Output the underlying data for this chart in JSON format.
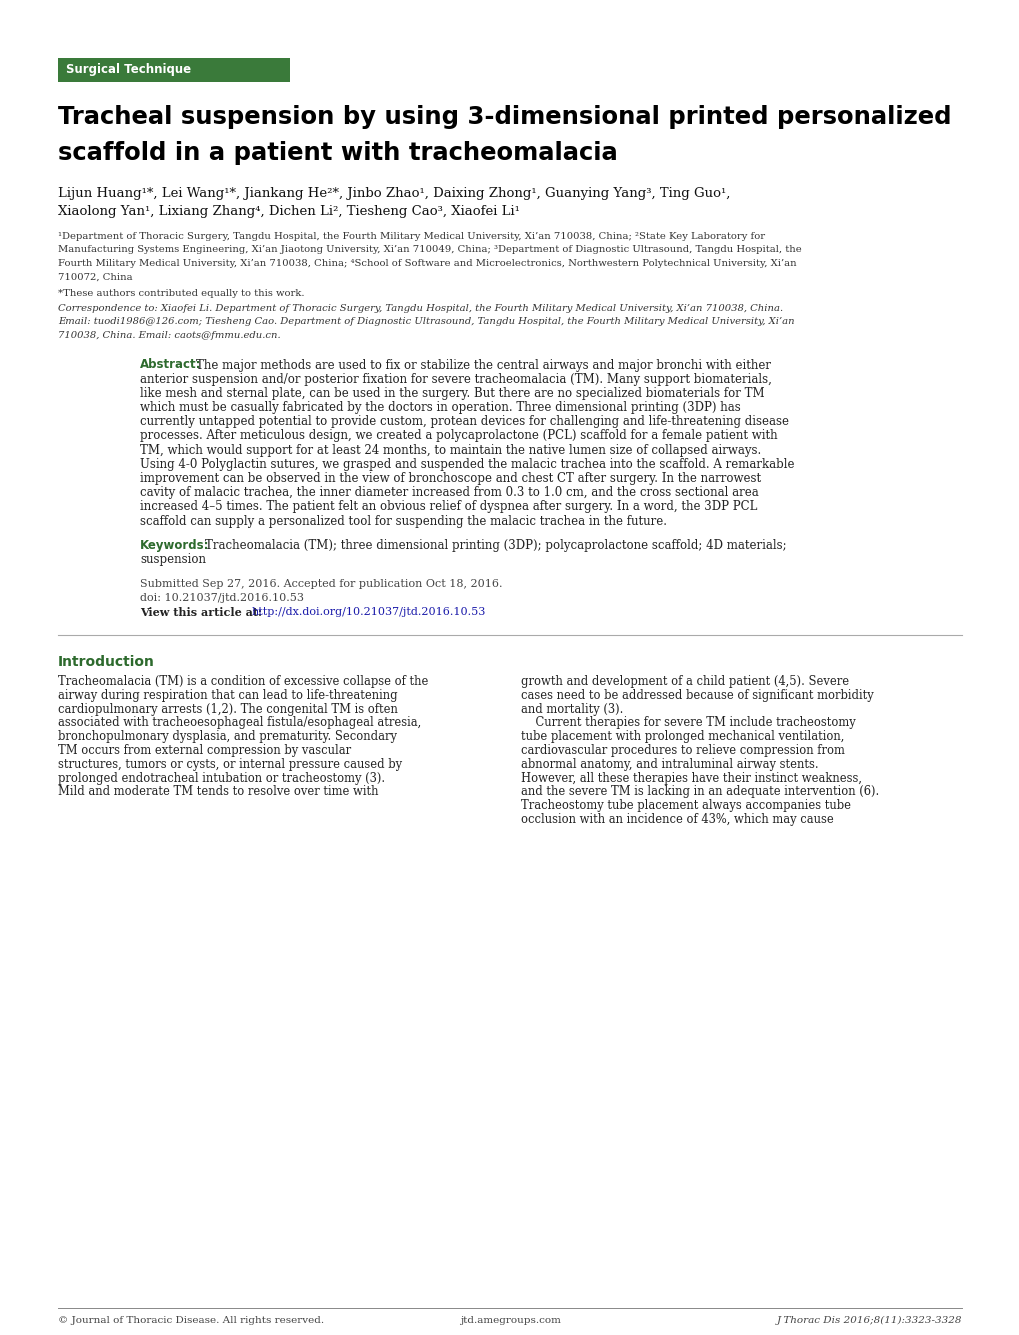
{
  "bg_color": "#ffffff",
  "green_color": "#2d6a2d",
  "tag_text": "Surgical Technique",
  "tag_bg": "#3a7a3a",
  "tag_text_color": "#ffffff",
  "title_line1": "Tracheal suspension by using 3-dimensional printed personalized",
  "title_line2": "scaffold in a patient with tracheomalacia",
  "authors_line1": "Lijun Huang¹*, Lei Wang¹*, Jiankang He²*, Jinbo Zhao¹, Daixing Zhong¹, Guanying Yang³, Ting Guo¹,",
  "authors_line2": "Xiaolong Yan¹, Lixiang Zhang⁴, Dichen Li², Tiesheng Cao³, Xiaofei Li¹",
  "affil_lines": [
    "¹Department of Thoracic Surgery, Tangdu Hospital, the Fourth Military Medical University, Xi’an 710038, China; ²State Key Laboratory for",
    "Manufacturing Systems Engineering, Xi’an Jiaotong University, Xi’an 710049, China; ³Department of Diagnostic Ultrasound, Tangdu Hospital, the",
    "Fourth Military Medical University, Xi’an 710038, China; ⁴School of Software and Microelectronics, Northwestern Polytechnical University, Xi’an",
    "710072, China"
  ],
  "equal_contrib": "*These authors contributed equally to this work.",
  "corr_lines": [
    "Correspondence to: Xiaofei Li. Department of Thoracic Surgery, Tangdu Hospital, the Fourth Military Medical University, Xi’an 710038, China.",
    "Email: tuodi1986@126.com; Tiesheng Cao. Department of Diagnostic Ultrasound, Tangdu Hospital, the Fourth Military Medical University, Xi’an",
    "710038, China. Email: caots@fmmu.edu.cn."
  ],
  "abstract_label": "Abstract:",
  "abstract_lines": [
    "The major methods are used to fix or stabilize the central airways and major bronchi with either",
    "anterior suspension and/or posterior fixation for severe tracheomalacia (TM). Many support biomaterials,",
    "like mesh and sternal plate, can be used in the surgery. But there are no specialized biomaterials for TM",
    "which must be casually fabricated by the doctors in operation. Three dimensional printing (3DP) has",
    "currently untapped potential to provide custom, protean devices for challenging and life-threatening disease",
    "processes. After meticulous design, we created a polycaprolactone (PCL) scaffold for a female patient with",
    "TM, which would support for at least 24 months, to maintain the native lumen size of collapsed airways.",
    "Using 4-0 Polyglactin sutures, we grasped and suspended the malacic trachea into the scaffold. A remarkable",
    "improvement can be observed in the view of bronchoscope and chest CT after surgery. In the narrowest",
    "cavity of malacic trachea, the inner diameter increased from 0.3 to 1.0 cm, and the cross sectional area",
    "increased 4–5 times. The patient felt an obvious relief of dyspnea after surgery. In a word, the 3DP PCL",
    "scaffold can supply a personalized tool for suspending the malacic trachea in the future."
  ],
  "keywords_label": "Keywords:",
  "keywords_line1": "Tracheomalacia (TM); three dimensional printing (3DP); polycaprolactone scaffold; 4D materials;",
  "keywords_line2": "suspension",
  "submitted": "Submitted Sep 27, 2016. Accepted for publication Oct 18, 2016.",
  "doi": "doi: 10.21037/jtd.2016.10.53",
  "view_prefix": "View this article at:",
  "view_link": "http://dx.doi.org/10.21037/jtd.2016.10.53",
  "intro_heading": "Introduction",
  "col1_lines": [
    "Tracheomalacia (TM) is a condition of excessive collapse of the",
    "airway during respiration that can lead to life-threatening",
    "cardiopulmonary arrests (1,2). The congenital TM is often",
    "associated with tracheoesophageal fistula/esophageal atresia,",
    "bronchopulmonary dysplasia, and prematurity. Secondary",
    "TM occurs from external compression by vascular",
    "structures, tumors or cysts, or internal pressure caused by",
    "prolonged endotracheal intubation or tracheostomy (3).",
    "Mild and moderate TM tends to resolve over time with"
  ],
  "col2_lines": [
    "growth and development of a child patient (4,5). Severe",
    "cases need to be addressed because of significant morbidity",
    "and mortality (3).",
    "    Current therapies for severe TM include tracheostomy",
    "tube placement with prolonged mechanical ventilation,",
    "cardiovascular procedures to relieve compression from",
    "abnormal anatomy, and intraluminal airway stents.",
    "However, all these therapies have their instinct weakness,",
    "and the severe TM is lacking in an adequate intervention (6).",
    "Tracheostomy tube placement always accompanies tube",
    "occlusion with an incidence of 43%, which may cause"
  ],
  "footer_left": "© Journal of Thoracic Disease. All rights reserved.",
  "footer_center": "jtd.amegroups.com",
  "footer_right": "J Thorac Dis 2016;8(11):3323-3328"
}
